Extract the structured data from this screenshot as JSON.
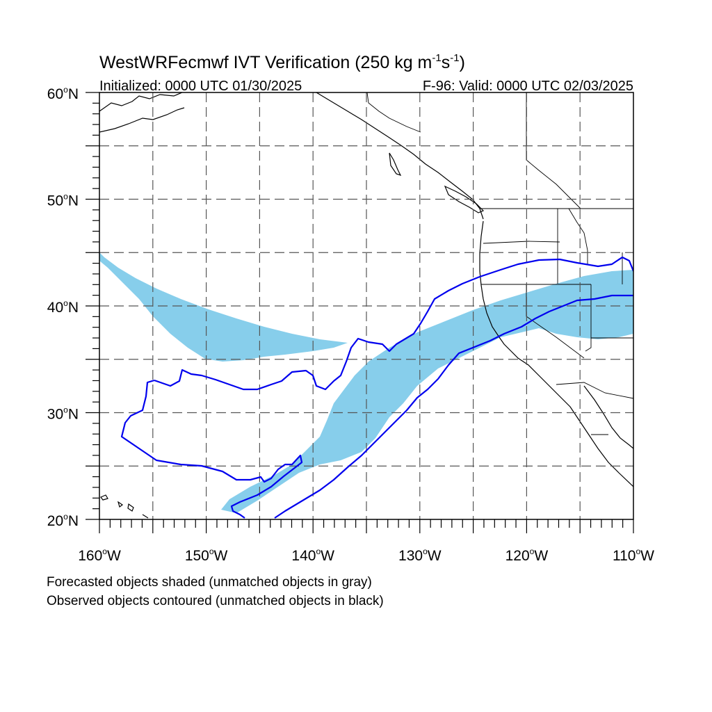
{
  "title": {
    "main": "WestWRFecmwf IVT Verification (250 kg m",
    "sup1": "-1",
    "mid": "s",
    "sup2": "-1",
    "end": ")"
  },
  "subtitle_left": "Initialized: 0000 UTC 01/30/2025",
  "subtitle_right": "F-96: Valid: 0000 UTC 02/03/2025",
  "lat_labels": [
    {
      "deg": "60",
      "suffix": "N",
      "value": 60
    },
    {
      "deg": "50",
      "suffix": "N",
      "value": 50
    },
    {
      "deg": "40",
      "suffix": "N",
      "value": 40
    },
    {
      "deg": "30",
      "suffix": "N",
      "value": 30
    },
    {
      "deg": "20",
      "suffix": "N",
      "value": 20
    }
  ],
  "lon_labels": [
    {
      "deg": "160",
      "suffix": "W",
      "value": -160
    },
    {
      "deg": "150",
      "suffix": "W",
      "value": -150
    },
    {
      "deg": "140",
      "suffix": "W",
      "value": -140
    },
    {
      "deg": "130",
      "suffix": "W",
      "value": -130
    },
    {
      "deg": "120",
      "suffix": "W",
      "value": -120
    },
    {
      "deg": "110",
      "suffix": "W",
      "value": -110
    }
  ],
  "map": {
    "lon_range": [
      -160,
      -110
    ],
    "lat_range": [
      20,
      60
    ],
    "grid_lons": [
      -155,
      -150,
      -145,
      -140,
      -135,
      -130,
      -125,
      -120,
      -115
    ],
    "grid_lats": [
      25,
      30,
      35,
      40,
      45,
      50,
      55
    ]
  },
  "colors": {
    "forecast_fill": "#87ceeb",
    "observed_contour": "#0000ee",
    "grid": "#555555",
    "coast": "#000000"
  },
  "footnote": {
    "line1": "Forecasted objects shaded (unmatched objects in gray)",
    "line2": "Observed objects contoured (unmatched objects in black)"
  }
}
